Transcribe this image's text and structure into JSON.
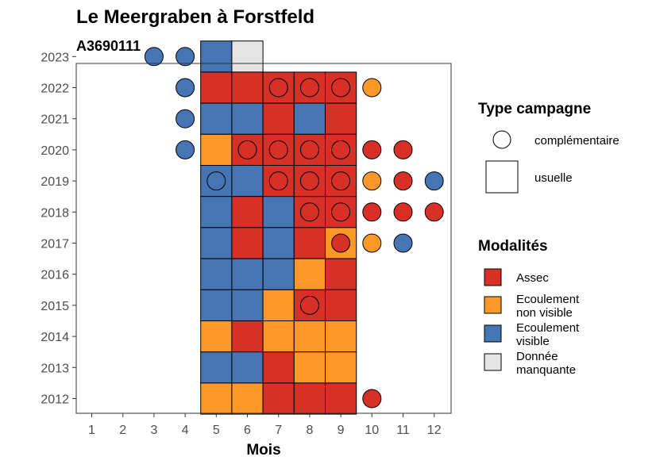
{
  "chart_data": {
    "type": "heatmap",
    "title": "Le Meergraben à Forstfeld",
    "subtitle": "A3690111",
    "xlabel": "Mois",
    "ylabel": "",
    "x_ticks": [
      "1",
      "2",
      "3",
      "4",
      "5",
      "6",
      "7",
      "8",
      "9",
      "10",
      "11",
      "12"
    ],
    "y_ticks": [
      "2012",
      "2013",
      "2014",
      "2015",
      "2016",
      "2017",
      "2018",
      "2019",
      "2020",
      "2021",
      "2022",
      "2023"
    ],
    "colors": {
      "Assec": "#d73027",
      "Ecoulement non visible": "#fe9929",
      "Ecoulement visible": "#4575b4",
      "Donnée manquante": "#e5e5e5"
    },
    "legend_shape": {
      "title": "Type campagne",
      "items": [
        {
          "label": "complémentaire",
          "shape": "circle"
        },
        {
          "label": "usuelle",
          "shape": "square"
        }
      ]
    },
    "legend_color": {
      "title": "Modalités",
      "items": [
        {
          "key": "Assec",
          "lines": [
            "Assec"
          ]
        },
        {
          "key": "Ecoulement non visible",
          "lines": [
            "Ecoulement",
            "non visible"
          ]
        },
        {
          "key": "Ecoulement visible",
          "lines": [
            "Ecoulement",
            "visible"
          ]
        },
        {
          "key": "Donnée manquante",
          "lines": [
            "Donnée",
            "manquante"
          ]
        }
      ]
    },
    "usuelle": [
      {
        "year": 2023,
        "month": 5,
        "value": "Ecoulement visible"
      },
      {
        "year": 2023,
        "month": 6,
        "value": "Donnée manquante"
      },
      {
        "year": 2022,
        "month": 5,
        "value": "Assec"
      },
      {
        "year": 2022,
        "month": 6,
        "value": "Assec"
      },
      {
        "year": 2022,
        "month": 7,
        "value": "Assec"
      },
      {
        "year": 2022,
        "month": 8,
        "value": "Assec"
      },
      {
        "year": 2022,
        "month": 9,
        "value": "Assec"
      },
      {
        "year": 2021,
        "month": 5,
        "value": "Ecoulement visible"
      },
      {
        "year": 2021,
        "month": 6,
        "value": "Ecoulement visible"
      },
      {
        "year": 2021,
        "month": 7,
        "value": "Assec"
      },
      {
        "year": 2021,
        "month": 8,
        "value": "Ecoulement visible"
      },
      {
        "year": 2021,
        "month": 9,
        "value": "Assec"
      },
      {
        "year": 2020,
        "month": 5,
        "value": "Ecoulement non visible"
      },
      {
        "year": 2020,
        "month": 6,
        "value": "Assec"
      },
      {
        "year": 2020,
        "month": 7,
        "value": "Assec"
      },
      {
        "year": 2020,
        "month": 8,
        "value": "Assec"
      },
      {
        "year": 2020,
        "month": 9,
        "value": "Assec"
      },
      {
        "year": 2019,
        "month": 5,
        "value": "Ecoulement visible"
      },
      {
        "year": 2019,
        "month": 6,
        "value": "Ecoulement visible"
      },
      {
        "year": 2019,
        "month": 7,
        "value": "Assec"
      },
      {
        "year": 2019,
        "month": 8,
        "value": "Assec"
      },
      {
        "year": 2019,
        "month": 9,
        "value": "Assec"
      },
      {
        "year": 2018,
        "month": 5,
        "value": "Ecoulement visible"
      },
      {
        "year": 2018,
        "month": 6,
        "value": "Assec"
      },
      {
        "year": 2018,
        "month": 7,
        "value": "Ecoulement visible"
      },
      {
        "year": 2018,
        "month": 8,
        "value": "Assec"
      },
      {
        "year": 2018,
        "month": 9,
        "value": "Assec"
      },
      {
        "year": 2017,
        "month": 5,
        "value": "Ecoulement visible"
      },
      {
        "year": 2017,
        "month": 6,
        "value": "Assec"
      },
      {
        "year": 2017,
        "month": 7,
        "value": "Ecoulement visible"
      },
      {
        "year": 2017,
        "month": 8,
        "value": "Assec"
      },
      {
        "year": 2017,
        "month": 9,
        "value": "Ecoulement non visible"
      },
      {
        "year": 2016,
        "month": 5,
        "value": "Ecoulement visible"
      },
      {
        "year": 2016,
        "month": 6,
        "value": "Ecoulement visible"
      },
      {
        "year": 2016,
        "month": 7,
        "value": "Ecoulement visible"
      },
      {
        "year": 2016,
        "month": 8,
        "value": "Ecoulement non visible"
      },
      {
        "year": 2016,
        "month": 9,
        "value": "Assec"
      },
      {
        "year": 2015,
        "month": 5,
        "value": "Ecoulement visible"
      },
      {
        "year": 2015,
        "month": 6,
        "value": "Ecoulement visible"
      },
      {
        "year": 2015,
        "month": 7,
        "value": "Ecoulement non visible"
      },
      {
        "year": 2015,
        "month": 8,
        "value": "Assec"
      },
      {
        "year": 2015,
        "month": 9,
        "value": "Assec"
      },
      {
        "year": 2014,
        "month": 5,
        "value": "Ecoulement non visible"
      },
      {
        "year": 2014,
        "month": 6,
        "value": "Assec"
      },
      {
        "year": 2014,
        "month": 7,
        "value": "Ecoulement non visible"
      },
      {
        "year": 2014,
        "month": 8,
        "value": "Ecoulement non visible"
      },
      {
        "year": 2014,
        "month": 9,
        "value": "Ecoulement non visible"
      },
      {
        "year": 2013,
        "month": 5,
        "value": "Ecoulement visible"
      },
      {
        "year": 2013,
        "month": 6,
        "value": "Ecoulement visible"
      },
      {
        "year": 2013,
        "month": 7,
        "value": "Assec"
      },
      {
        "year": 2013,
        "month": 8,
        "value": "Ecoulement non visible"
      },
      {
        "year": 2013,
        "month": 9,
        "value": "Ecoulement non visible"
      },
      {
        "year": 2012,
        "month": 5,
        "value": "Ecoulement non visible"
      },
      {
        "year": 2012,
        "month": 6,
        "value": "Ecoulement non visible"
      },
      {
        "year": 2012,
        "month": 7,
        "value": "Assec"
      },
      {
        "year": 2012,
        "month": 8,
        "value": "Assec"
      },
      {
        "year": 2012,
        "month": 9,
        "value": "Assec"
      }
    ],
    "complementaire": [
      {
        "year": 2023,
        "month": 3,
        "value": "Ecoulement visible"
      },
      {
        "year": 2023,
        "month": 4,
        "value": "Ecoulement visible"
      },
      {
        "year": 2022,
        "month": 4,
        "value": "Ecoulement visible"
      },
      {
        "year": 2022,
        "month": 7,
        "value": "Assec"
      },
      {
        "year": 2022,
        "month": 8,
        "value": "Assec"
      },
      {
        "year": 2022,
        "month": 9,
        "value": "Assec"
      },
      {
        "year": 2022,
        "month": 10,
        "value": "Ecoulement non visible"
      },
      {
        "year": 2021,
        "month": 4,
        "value": "Ecoulement visible"
      },
      {
        "year": 2020,
        "month": 4,
        "value": "Ecoulement visible"
      },
      {
        "year": 2020,
        "month": 6,
        "value": "Assec"
      },
      {
        "year": 2020,
        "month": 7,
        "value": "Assec"
      },
      {
        "year": 2020,
        "month": 8,
        "value": "Assec"
      },
      {
        "year": 2020,
        "month": 9,
        "value": "Assec"
      },
      {
        "year": 2020,
        "month": 10,
        "value": "Assec"
      },
      {
        "year": 2020,
        "month": 11,
        "value": "Assec"
      },
      {
        "year": 2019,
        "month": 5,
        "value": "Ecoulement visible"
      },
      {
        "year": 2019,
        "month": 7,
        "value": "Assec"
      },
      {
        "year": 2019,
        "month": 8,
        "value": "Assec"
      },
      {
        "year": 2019,
        "month": 9,
        "value": "Assec"
      },
      {
        "year": 2019,
        "month": 10,
        "value": "Ecoulement non visible"
      },
      {
        "year": 2019,
        "month": 11,
        "value": "Assec"
      },
      {
        "year": 2019,
        "month": 12,
        "value": "Ecoulement visible"
      },
      {
        "year": 2018,
        "month": 8,
        "value": "Assec"
      },
      {
        "year": 2018,
        "month": 9,
        "value": "Assec"
      },
      {
        "year": 2018,
        "month": 10,
        "value": "Assec"
      },
      {
        "year": 2018,
        "month": 11,
        "value": "Assec"
      },
      {
        "year": 2018,
        "month": 12,
        "value": "Assec"
      },
      {
        "year": 2017,
        "month": 9,
        "value": "Assec"
      },
      {
        "year": 2017,
        "month": 10,
        "value": "Ecoulement non visible"
      },
      {
        "year": 2017,
        "month": 11,
        "value": "Ecoulement visible"
      },
      {
        "year": 2015,
        "month": 8,
        "value": "Assec"
      },
      {
        "year": 2012,
        "month": 10,
        "value": "Assec"
      }
    ]
  }
}
